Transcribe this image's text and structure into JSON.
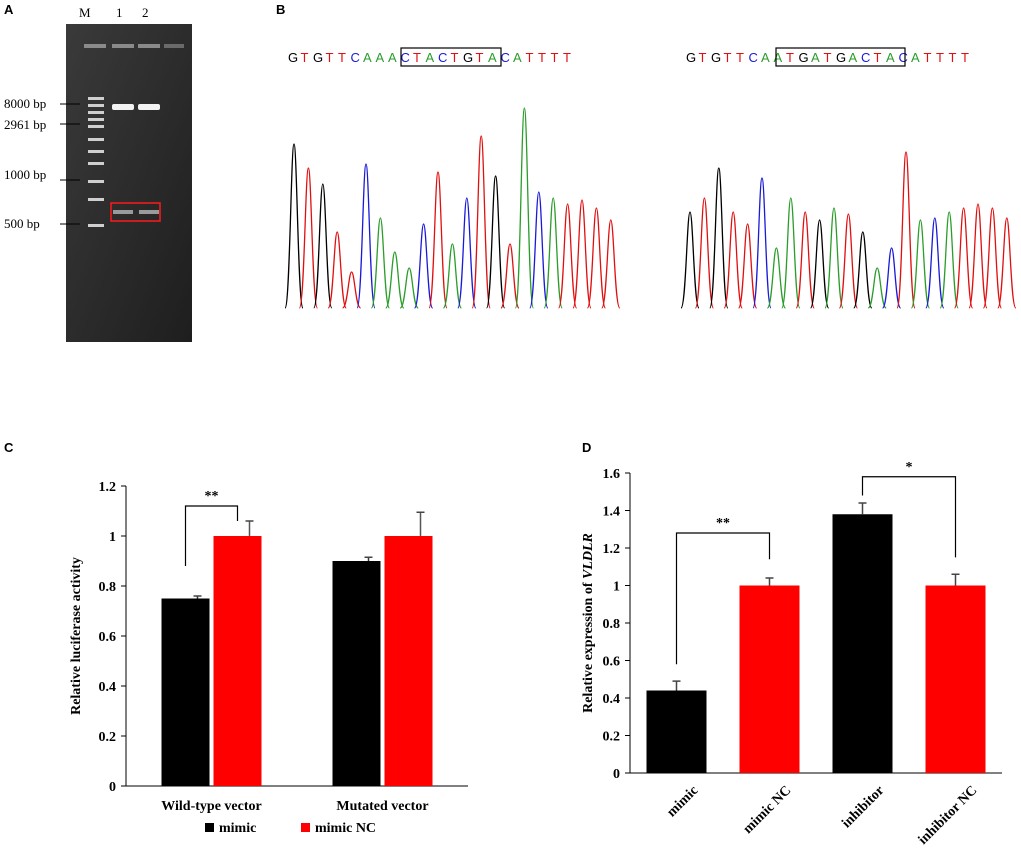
{
  "panels": {
    "a": "A",
    "b": "B",
    "c": "C",
    "d": "D"
  },
  "gel": {
    "lanes": [
      "M",
      "1",
      "2"
    ],
    "markers": [
      "8000 bp",
      "2961 bp",
      "1000 bp",
      "500 bp"
    ]
  },
  "sequences": {
    "wild_type": "GTGTTCAAACTACTGTACATTTT",
    "mutated": "GTGTTCAATGATGACTACATTTT",
    "colors": {
      "A": "#2a9d2a",
      "C": "#1a1ad8",
      "G": "#000000",
      "T": "#e01010"
    }
  },
  "chart_data": [
    {
      "type": "bar",
      "panel": "C",
      "categories": [
        "Wild-type vector",
        "Mutated vector"
      ],
      "series": [
        {
          "name": "mimic",
          "color": "#000000",
          "values": [
            0.75,
            0.9
          ],
          "errors": [
            0.01,
            0.015
          ]
        },
        {
          "name": "mimic NC",
          "color": "#ff0000",
          "values": [
            1.0,
            1.0
          ],
          "errors": [
            0.06,
            0.095
          ]
        }
      ],
      "ylabel": "Relative luciferase activity",
      "ylim": [
        0,
        1.2
      ],
      "yticks": [
        "0",
        "0.2",
        "0.4",
        "0.6",
        "0.8",
        "1",
        "1.2"
      ],
      "annotations": [
        {
          "text": "**",
          "between": "Wild-type vector"
        }
      ],
      "legend": [
        "mimic",
        "mimic NC"
      ]
    },
    {
      "type": "bar",
      "panel": "D",
      "categories": [
        "mimic",
        "mimic NC",
        "inhibitor",
        "inhibitor NC"
      ],
      "values": [
        0.44,
        1.0,
        1.38,
        1.0
      ],
      "errors": [
        0.05,
        0.04,
        0.06,
        0.06
      ],
      "colors": [
        "#000000",
        "#ff0000",
        "#000000",
        "#ff0000"
      ],
      "ylabel_prefix": "Relative expression of ",
      "ylabel_gene": "VLDLR",
      "ylim": [
        0,
        1.6
      ],
      "yticks": [
        "0",
        "0.2",
        "0.4",
        "0.6",
        "0.8",
        "1",
        "1.2",
        "1.4",
        "1.6"
      ],
      "annotations": [
        {
          "text": "**",
          "from": 0,
          "to": 1
        },
        {
          "text": "*",
          "from": 2,
          "to": 3
        }
      ]
    }
  ]
}
